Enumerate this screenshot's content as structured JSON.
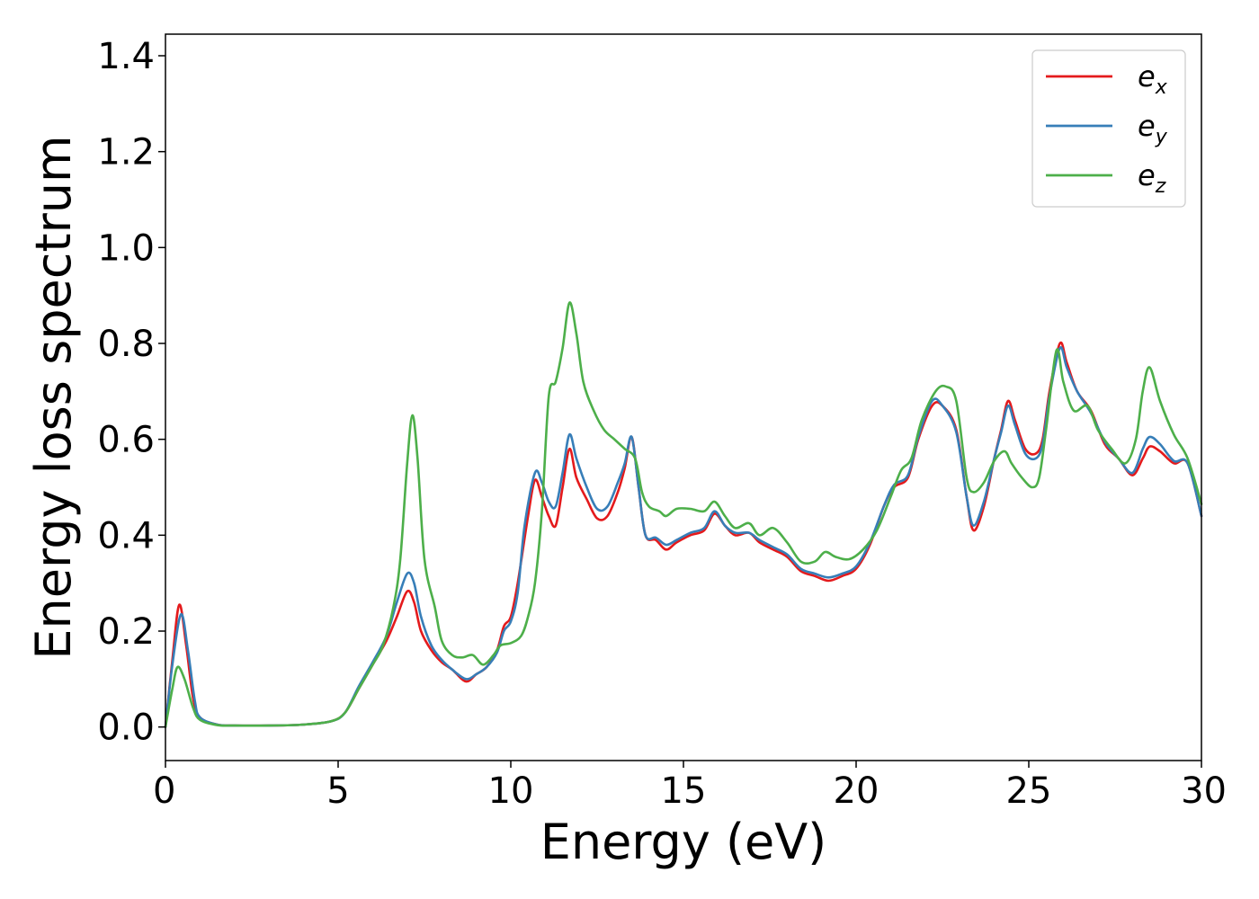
{
  "chart_data": {
    "type": "line",
    "title": "",
    "xlabel": "Energy (eV)",
    "ylabel": "Energy loss spectrum",
    "xlim": [
      0,
      30
    ],
    "ylim": [
      -0.07,
      1.445
    ],
    "xticks": [
      0,
      5,
      10,
      15,
      20,
      25,
      30
    ],
    "xtick_labels": [
      "0",
      "5",
      "10",
      "15",
      "20",
      "25",
      "30"
    ],
    "yticks": [
      0.0,
      0.2,
      0.4,
      0.6,
      0.8,
      1.0,
      1.2,
      1.4
    ],
    "ytick_labels": [
      "0.0",
      "0.2",
      "0.4",
      "0.6",
      "0.8",
      "1.0",
      "1.2",
      "1.4"
    ],
    "grid": false,
    "legend_position": "top-right",
    "series": [
      {
        "name": "e_x",
        "label_base": "e",
        "label_sub": "x",
        "color": "#e41a1c",
        "points": [
          [
            0,
            0.0
          ],
          [
            0.2,
            0.14
          ],
          [
            0.4,
            0.255
          ],
          [
            0.6,
            0.17
          ],
          [
            0.8,
            0.06
          ],
          [
            1.0,
            0.02
          ],
          [
            1.5,
            0.005
          ],
          [
            2,
            0.003
          ],
          [
            3,
            0.003
          ],
          [
            4,
            0.005
          ],
          [
            4.8,
            0.012
          ],
          [
            5.2,
            0.03
          ],
          [
            5.6,
            0.08
          ],
          [
            6.0,
            0.13
          ],
          [
            6.4,
            0.18
          ],
          [
            6.7,
            0.23
          ],
          [
            7.0,
            0.283
          ],
          [
            7.2,
            0.26
          ],
          [
            7.4,
            0.2
          ],
          [
            7.7,
            0.16
          ],
          [
            8.0,
            0.135
          ],
          [
            8.3,
            0.12
          ],
          [
            8.7,
            0.095
          ],
          [
            9.0,
            0.11
          ],
          [
            9.3,
            0.125
          ],
          [
            9.6,
            0.16
          ],
          [
            9.8,
            0.21
          ],
          [
            10.0,
            0.23
          ],
          [
            10.2,
            0.3
          ],
          [
            10.5,
            0.44
          ],
          [
            10.7,
            0.515
          ],
          [
            10.9,
            0.48
          ],
          [
            11.1,
            0.44
          ],
          [
            11.3,
            0.42
          ],
          [
            11.5,
            0.5
          ],
          [
            11.7,
            0.58
          ],
          [
            11.9,
            0.52
          ],
          [
            12.2,
            0.475
          ],
          [
            12.5,
            0.435
          ],
          [
            12.8,
            0.44
          ],
          [
            13.1,
            0.49
          ],
          [
            13.3,
            0.54
          ],
          [
            13.5,
            0.605
          ],
          [
            13.7,
            0.5
          ],
          [
            13.9,
            0.4
          ],
          [
            14.2,
            0.39
          ],
          [
            14.5,
            0.37
          ],
          [
            14.8,
            0.385
          ],
          [
            15.2,
            0.4
          ],
          [
            15.6,
            0.41
          ],
          [
            15.9,
            0.445
          ],
          [
            16.2,
            0.42
          ],
          [
            16.5,
            0.4
          ],
          [
            16.9,
            0.405
          ],
          [
            17.2,
            0.385
          ],
          [
            17.6,
            0.37
          ],
          [
            18.0,
            0.355
          ],
          [
            18.4,
            0.325
          ],
          [
            18.8,
            0.315
          ],
          [
            19.2,
            0.305
          ],
          [
            19.6,
            0.315
          ],
          [
            20.0,
            0.33
          ],
          [
            20.4,
            0.38
          ],
          [
            20.8,
            0.46
          ],
          [
            21.1,
            0.5
          ],
          [
            21.5,
            0.52
          ],
          [
            21.8,
            0.6
          ],
          [
            22.2,
            0.67
          ],
          [
            22.5,
            0.67
          ],
          [
            22.9,
            0.62
          ],
          [
            23.2,
            0.48
          ],
          [
            23.4,
            0.41
          ],
          [
            23.7,
            0.46
          ],
          [
            24.0,
            0.56
          ],
          [
            24.2,
            0.62
          ],
          [
            24.4,
            0.68
          ],
          [
            24.6,
            0.64
          ],
          [
            24.9,
            0.58
          ],
          [
            25.2,
            0.57
          ],
          [
            25.4,
            0.6
          ],
          [
            25.6,
            0.7
          ],
          [
            25.9,
            0.8
          ],
          [
            26.1,
            0.76
          ],
          [
            26.4,
            0.7
          ],
          [
            26.8,
            0.66
          ],
          [
            27.2,
            0.59
          ],
          [
            27.6,
            0.56
          ],
          [
            28.0,
            0.525
          ],
          [
            28.3,
            0.56
          ],
          [
            28.5,
            0.585
          ],
          [
            28.8,
            0.575
          ],
          [
            29.2,
            0.55
          ],
          [
            29.6,
            0.55
          ],
          [
            30.0,
            0.44
          ]
        ]
      },
      {
        "name": "e_y",
        "label_base": "e",
        "label_sub": "y",
        "color": "#377eb8",
        "points": [
          [
            0,
            0.0
          ],
          [
            0.2,
            0.13
          ],
          [
            0.45,
            0.235
          ],
          [
            0.65,
            0.16
          ],
          [
            0.85,
            0.055
          ],
          [
            1.0,
            0.02
          ],
          [
            1.5,
            0.005
          ],
          [
            2,
            0.003
          ],
          [
            3,
            0.003
          ],
          [
            4,
            0.005
          ],
          [
            4.8,
            0.012
          ],
          [
            5.2,
            0.03
          ],
          [
            5.6,
            0.085
          ],
          [
            6.0,
            0.135
          ],
          [
            6.4,
            0.19
          ],
          [
            6.7,
            0.26
          ],
          [
            7.0,
            0.32
          ],
          [
            7.2,
            0.3
          ],
          [
            7.4,
            0.23
          ],
          [
            7.7,
            0.17
          ],
          [
            8.0,
            0.14
          ],
          [
            8.3,
            0.12
          ],
          [
            8.7,
            0.1
          ],
          [
            9.0,
            0.11
          ],
          [
            9.3,
            0.125
          ],
          [
            9.6,
            0.155
          ],
          [
            9.8,
            0.2
          ],
          [
            10.0,
            0.22
          ],
          [
            10.2,
            0.28
          ],
          [
            10.4,
            0.42
          ],
          [
            10.7,
            0.53
          ],
          [
            10.9,
            0.51
          ],
          [
            11.1,
            0.47
          ],
          [
            11.3,
            0.46
          ],
          [
            11.5,
            0.53
          ],
          [
            11.7,
            0.61
          ],
          [
            11.9,
            0.56
          ],
          [
            12.2,
            0.5
          ],
          [
            12.5,
            0.455
          ],
          [
            12.8,
            0.46
          ],
          [
            13.1,
            0.51
          ],
          [
            13.3,
            0.55
          ],
          [
            13.5,
            0.605
          ],
          [
            13.7,
            0.5
          ],
          [
            13.9,
            0.4
          ],
          [
            14.2,
            0.395
          ],
          [
            14.5,
            0.38
          ],
          [
            14.8,
            0.39
          ],
          [
            15.2,
            0.405
          ],
          [
            15.6,
            0.415
          ],
          [
            15.9,
            0.45
          ],
          [
            16.2,
            0.42
          ],
          [
            16.5,
            0.405
          ],
          [
            16.9,
            0.405
          ],
          [
            17.2,
            0.39
          ],
          [
            17.6,
            0.375
          ],
          [
            18.0,
            0.36
          ],
          [
            18.4,
            0.33
          ],
          [
            18.8,
            0.32
          ],
          [
            19.2,
            0.312
          ],
          [
            19.6,
            0.32
          ],
          [
            20.0,
            0.335
          ],
          [
            20.4,
            0.385
          ],
          [
            20.8,
            0.46
          ],
          [
            21.1,
            0.505
          ],
          [
            21.5,
            0.525
          ],
          [
            21.8,
            0.605
          ],
          [
            22.2,
            0.68
          ],
          [
            22.5,
            0.67
          ],
          [
            22.9,
            0.615
          ],
          [
            23.2,
            0.48
          ],
          [
            23.4,
            0.42
          ],
          [
            23.7,
            0.47
          ],
          [
            24.0,
            0.56
          ],
          [
            24.2,
            0.615
          ],
          [
            24.4,
            0.67
          ],
          [
            24.6,
            0.63
          ],
          [
            24.9,
            0.57
          ],
          [
            25.2,
            0.56
          ],
          [
            25.4,
            0.59
          ],
          [
            25.6,
            0.69
          ],
          [
            25.9,
            0.79
          ],
          [
            26.1,
            0.75
          ],
          [
            26.4,
            0.7
          ],
          [
            26.8,
            0.655
          ],
          [
            27.2,
            0.595
          ],
          [
            27.6,
            0.56
          ],
          [
            28.0,
            0.53
          ],
          [
            28.3,
            0.58
          ],
          [
            28.5,
            0.605
          ],
          [
            28.8,
            0.59
          ],
          [
            29.2,
            0.555
          ],
          [
            29.6,
            0.55
          ],
          [
            30.0,
            0.44
          ]
        ]
      },
      {
        "name": "e_z",
        "label_base": "e",
        "label_sub": "z",
        "color": "#4daf4a",
        "points": [
          [
            0,
            0.0
          ],
          [
            0.2,
            0.08
          ],
          [
            0.35,
            0.125
          ],
          [
            0.55,
            0.1
          ],
          [
            0.8,
            0.04
          ],
          [
            1.0,
            0.015
          ],
          [
            1.5,
            0.004
          ],
          [
            2,
            0.003
          ],
          [
            3,
            0.003
          ],
          [
            4,
            0.005
          ],
          [
            4.8,
            0.012
          ],
          [
            5.2,
            0.03
          ],
          [
            5.6,
            0.08
          ],
          [
            6.0,
            0.13
          ],
          [
            6.3,
            0.17
          ],
          [
            6.6,
            0.25
          ],
          [
            6.8,
            0.35
          ],
          [
            7.0,
            0.55
          ],
          [
            7.15,
            0.65
          ],
          [
            7.3,
            0.56
          ],
          [
            7.5,
            0.35
          ],
          [
            7.8,
            0.25
          ],
          [
            8.0,
            0.18
          ],
          [
            8.3,
            0.15
          ],
          [
            8.6,
            0.145
          ],
          [
            8.9,
            0.15
          ],
          [
            9.2,
            0.13
          ],
          [
            9.5,
            0.15
          ],
          [
            9.7,
            0.17
          ],
          [
            10.0,
            0.175
          ],
          [
            10.3,
            0.19
          ],
          [
            10.5,
            0.23
          ],
          [
            10.7,
            0.3
          ],
          [
            10.9,
            0.45
          ],
          [
            11.1,
            0.69
          ],
          [
            11.3,
            0.72
          ],
          [
            11.5,
            0.79
          ],
          [
            11.7,
            0.885
          ],
          [
            11.9,
            0.82
          ],
          [
            12.1,
            0.72
          ],
          [
            12.4,
            0.66
          ],
          [
            12.7,
            0.62
          ],
          [
            13.0,
            0.6
          ],
          [
            13.3,
            0.58
          ],
          [
            13.6,
            0.56
          ],
          [
            13.8,
            0.49
          ],
          [
            14.0,
            0.46
          ],
          [
            14.3,
            0.45
          ],
          [
            14.5,
            0.44
          ],
          [
            14.8,
            0.455
          ],
          [
            15.2,
            0.455
          ],
          [
            15.6,
            0.45
          ],
          [
            15.9,
            0.47
          ],
          [
            16.2,
            0.44
          ],
          [
            16.5,
            0.415
          ],
          [
            16.9,
            0.425
          ],
          [
            17.2,
            0.4
          ],
          [
            17.6,
            0.415
          ],
          [
            18.0,
            0.385
          ],
          [
            18.4,
            0.345
          ],
          [
            18.8,
            0.345
          ],
          [
            19.1,
            0.365
          ],
          [
            19.4,
            0.355
          ],
          [
            19.8,
            0.35
          ],
          [
            20.2,
            0.37
          ],
          [
            20.6,
            0.41
          ],
          [
            21.0,
            0.48
          ],
          [
            21.3,
            0.535
          ],
          [
            21.6,
            0.56
          ],
          [
            21.9,
            0.64
          ],
          [
            22.3,
            0.7
          ],
          [
            22.6,
            0.71
          ],
          [
            22.9,
            0.68
          ],
          [
            23.2,
            0.52
          ],
          [
            23.4,
            0.49
          ],
          [
            23.7,
            0.51
          ],
          [
            24.0,
            0.555
          ],
          [
            24.3,
            0.575
          ],
          [
            24.5,
            0.55
          ],
          [
            24.8,
            0.52
          ],
          [
            25.1,
            0.5
          ],
          [
            25.3,
            0.52
          ],
          [
            25.5,
            0.62
          ],
          [
            25.8,
            0.785
          ],
          [
            26.0,
            0.72
          ],
          [
            26.3,
            0.66
          ],
          [
            26.7,
            0.67
          ],
          [
            27.0,
            0.62
          ],
          [
            27.4,
            0.58
          ],
          [
            27.8,
            0.55
          ],
          [
            28.1,
            0.6
          ],
          [
            28.3,
            0.7
          ],
          [
            28.5,
            0.75
          ],
          [
            28.8,
            0.68
          ],
          [
            29.2,
            0.61
          ],
          [
            29.6,
            0.56
          ],
          [
            30.0,
            0.465
          ]
        ]
      }
    ]
  }
}
